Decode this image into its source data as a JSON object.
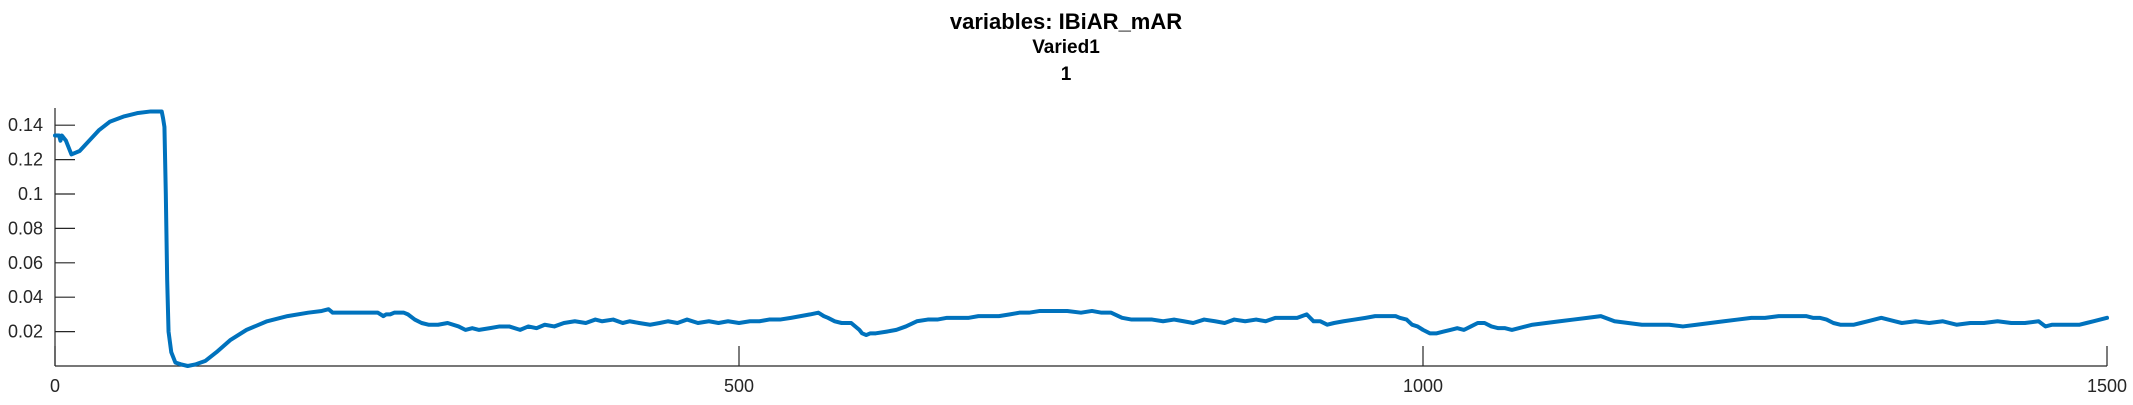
{
  "chart_data": {
    "type": "line",
    "title": "variables: IBiAR_mAR",
    "subtitle_lines": [
      "Varied1",
      "1"
    ],
    "xlabel": "",
    "ylabel": "",
    "xlim": [
      0,
      1500
    ],
    "ylim": [
      0,
      0.15
    ],
    "grid": false,
    "legend": "none",
    "x_ticks": [
      0,
      500,
      1000,
      1500
    ],
    "x_tick_labels": [
      "0",
      "500",
      "1000",
      "1500"
    ],
    "y_ticks": [
      0.02,
      0.04,
      0.06,
      0.08,
      0.1,
      0.12,
      0.14
    ],
    "y_tick_labels": [
      "0.02",
      "0.04",
      "0.06",
      "0.08",
      "0.1",
      "0.12",
      "0.14"
    ],
    "series": [
      {
        "color": "#0072BD",
        "x": [
          0,
          2,
          3,
          4,
          5,
          8,
          12,
          18,
          25,
          32,
          40,
          50,
          60,
          70,
          75,
          78,
          79,
          80,
          81,
          82,
          83,
          85,
          88,
          92,
          97,
          103,
          110,
          118,
          128,
          140,
          155,
          170,
          185,
          195,
          200,
          203,
          208,
          215,
          222,
          230,
          236,
          240,
          242,
          245,
          248,
          252,
          255,
          258,
          263,
          268,
          273,
          280,
          287,
          295,
          300,
          305,
          310,
          318,
          325,
          332,
          340,
          346,
          352,
          358,
          365,
          372,
          380,
          388,
          395,
          400,
          408,
          415,
          420,
          427,
          435,
          442,
          448,
          455,
          462,
          470,
          478,
          485,
          492,
          500,
          508,
          515,
          522,
          530,
          538,
          545,
          552,
          558,
          562,
          565,
          570,
          575,
          582,
          588,
          590,
          593,
          596,
          600,
          608,
          615,
          622,
          630,
          638,
          645,
          652,
          660,
          668,
          675,
          682,
          690,
          698,
          705,
          712,
          720,
          730,
          740,
          750,
          758,
          765,
          772,
          780,
          787,
          795,
          802,
          810,
          818,
          825,
          832,
          840,
          848,
          855,
          862,
          870,
          878,
          885,
          892,
          900,
          908,
          915,
          920,
          925,
          930,
          935,
          942,
          950,
          958,
          965,
          972,
          980,
          983,
          988,
          992,
          996,
          1000,
          1005,
          1010,
          1015,
          1020,
          1025,
          1030,
          1035,
          1040,
          1045,
          1050,
          1055,
          1060,
          1065,
          1070,
          1075,
          1080,
          1090,
          1100,
          1110,
          1120,
          1130,
          1140,
          1150,
          1160,
          1170,
          1180,
          1190,
          1200,
          1210,
          1220,
          1230,
          1240,
          1250,
          1260,
          1270,
          1280,
          1285,
          1290,
          1295,
          1300,
          1305,
          1310,
          1315,
          1320,
          1325,
          1330,
          1335,
          1340,
          1345,
          1350,
          1360,
          1370,
          1380,
          1390,
          1400,
          1410,
          1420,
          1430,
          1440,
          1450,
          1455,
          1460,
          1465,
          1470,
          1475,
          1480,
          1485,
          1490,
          1495,
          1500
        ],
        "y": [
          0.134,
          0.134,
          0.134,
          0.131,
          0.134,
          0.131,
          0.123,
          0.125,
          0.131,
          0.137,
          0.142,
          0.145,
          0.147,
          0.148,
          0.148,
          0.148,
          0.144,
          0.139,
          0.1,
          0.05,
          0.02,
          0.008,
          0.002,
          0.001,
          0.0,
          0.001,
          0.003,
          0.008,
          0.015,
          0.021,
          0.026,
          0.029,
          0.031,
          0.032,
          0.033,
          0.031,
          0.031,
          0.031,
          0.031,
          0.031,
          0.031,
          0.029,
          0.03,
          0.03,
          0.031,
          0.031,
          0.031,
          0.03,
          0.027,
          0.025,
          0.024,
          0.024,
          0.025,
          0.023,
          0.021,
          0.022,
          0.021,
          0.022,
          0.023,
          0.023,
          0.021,
          0.023,
          0.022,
          0.024,
          0.023,
          0.025,
          0.026,
          0.025,
          0.027,
          0.026,
          0.027,
          0.025,
          0.026,
          0.025,
          0.024,
          0.025,
          0.026,
          0.025,
          0.027,
          0.025,
          0.026,
          0.025,
          0.026,
          0.025,
          0.026,
          0.026,
          0.027,
          0.027,
          0.028,
          0.029,
          0.03,
          0.031,
          0.029,
          0.028,
          0.026,
          0.025,
          0.025,
          0.021,
          0.019,
          0.018,
          0.019,
          0.019,
          0.02,
          0.021,
          0.023,
          0.026,
          0.027,
          0.027,
          0.028,
          0.028,
          0.028,
          0.029,
          0.029,
          0.029,
          0.03,
          0.031,
          0.031,
          0.032,
          0.032,
          0.032,
          0.031,
          0.032,
          0.031,
          0.031,
          0.028,
          0.027,
          0.027,
          0.027,
          0.026,
          0.027,
          0.026,
          0.025,
          0.027,
          0.026,
          0.025,
          0.027,
          0.026,
          0.027,
          0.026,
          0.028,
          0.028,
          0.028,
          0.03,
          0.026,
          0.026,
          0.024,
          0.025,
          0.026,
          0.027,
          0.028,
          0.029,
          0.029,
          0.029,
          0.028,
          0.027,
          0.024,
          0.023,
          0.021,
          0.019,
          0.019,
          0.02,
          0.021,
          0.022,
          0.021,
          0.023,
          0.025,
          0.025,
          0.023,
          0.022,
          0.022,
          0.021,
          0.022,
          0.023,
          0.024,
          0.025,
          0.026,
          0.027,
          0.028,
          0.029,
          0.026,
          0.025,
          0.024,
          0.024,
          0.024,
          0.023,
          0.024,
          0.025,
          0.026,
          0.027,
          0.028,
          0.028,
          0.029,
          0.029,
          0.029,
          0.028,
          0.028,
          0.027,
          0.025,
          0.024,
          0.024,
          0.024,
          0.025,
          0.026,
          0.027,
          0.028,
          0.027,
          0.026,
          0.025,
          0.026,
          0.025,
          0.026,
          0.024,
          0.025,
          0.025,
          0.026,
          0.025,
          0.025,
          0.026,
          0.023,
          0.024,
          0.024,
          0.024,
          0.024,
          0.024,
          0.025,
          0.026,
          0.027,
          0.028
        ]
      }
    ]
  }
}
